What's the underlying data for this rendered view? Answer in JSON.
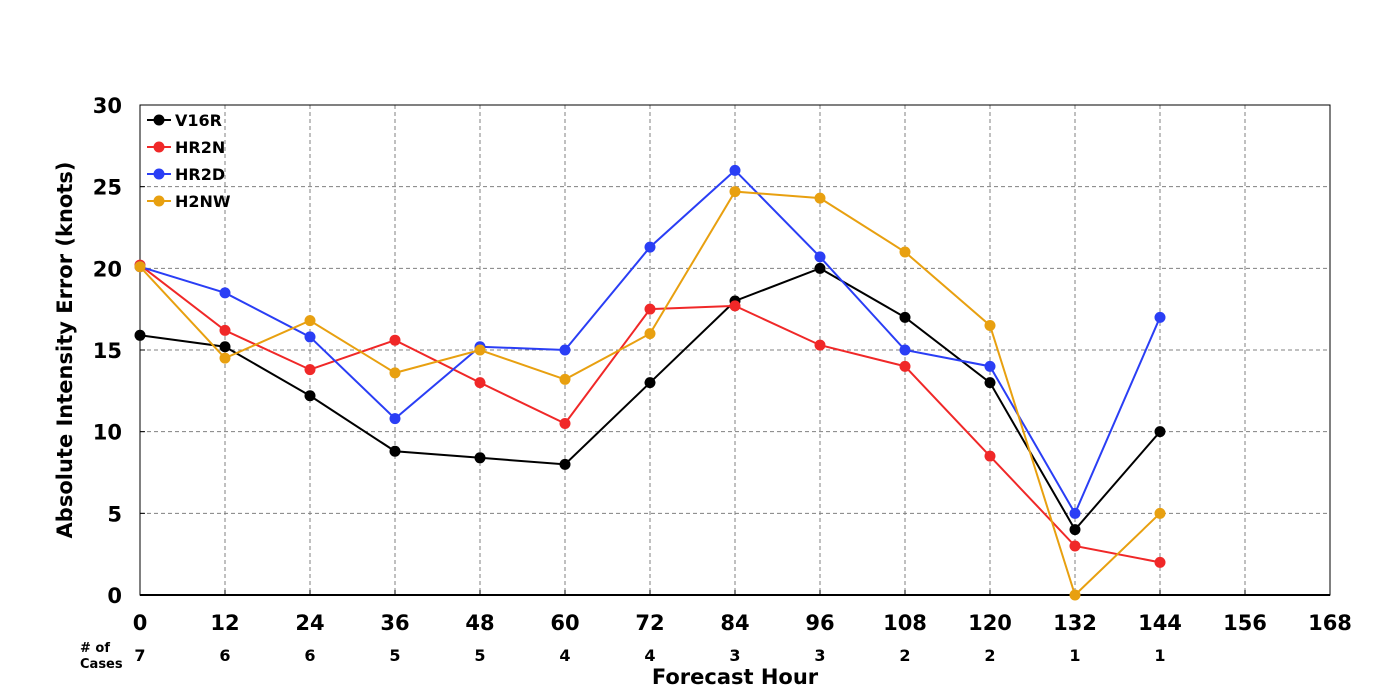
{
  "chart_data": {
    "type": "line",
    "title": "",
    "xlabel": "Forecast Hour",
    "ylabel": "Absolute Intensity Error (knots)",
    "xlim": [
      0,
      168
    ],
    "ylim": [
      0,
      30
    ],
    "x_ticks": [
      0,
      12,
      24,
      36,
      48,
      60,
      72,
      84,
      96,
      108,
      120,
      132,
      144,
      156,
      168
    ],
    "y_ticks": [
      0,
      5,
      10,
      15,
      20,
      25,
      30
    ],
    "grid": true,
    "legend_position": "top-left",
    "cases_label_line1": "# of",
    "cases_label_line2": "Cases",
    "cases": {
      "x": [
        0,
        12,
        24,
        36,
        48,
        60,
        72,
        84,
        96,
        108,
        120,
        132,
        144
      ],
      "counts": [
        "7",
        "6",
        "6",
        "5",
        "5",
        "4",
        "4",
        "3",
        "3",
        "2",
        "2",
        "1",
        "1"
      ]
    },
    "x": [
      0,
      12,
      24,
      36,
      48,
      60,
      72,
      84,
      96,
      108,
      120,
      132,
      144
    ],
    "series": [
      {
        "name": "V16R",
        "color": "#000000",
        "values": [
          15.9,
          15.2,
          12.2,
          8.8,
          8.4,
          8.0,
          13.0,
          18.0,
          20.0,
          17.0,
          13.0,
          4.0,
          10.0
        ]
      },
      {
        "name": "HR2N",
        "color": "#f02828",
        "values": [
          20.2,
          16.2,
          13.8,
          15.6,
          13.0,
          10.5,
          17.5,
          17.7,
          15.3,
          14.0,
          8.5,
          3.0,
          2.0
        ]
      },
      {
        "name": "HR2D",
        "color": "#2a3ef5",
        "values": [
          20.1,
          18.5,
          15.8,
          10.8,
          15.2,
          15.0,
          21.3,
          26.0,
          20.7,
          15.0,
          14.0,
          5.0,
          17.0
        ]
      },
      {
        "name": "H2NW",
        "color": "#e8a010",
        "values": [
          20.1,
          14.5,
          16.8,
          13.6,
          15.0,
          13.2,
          16.0,
          24.7,
          24.3,
          21.0,
          16.5,
          0.0,
          5.0
        ]
      }
    ]
  }
}
